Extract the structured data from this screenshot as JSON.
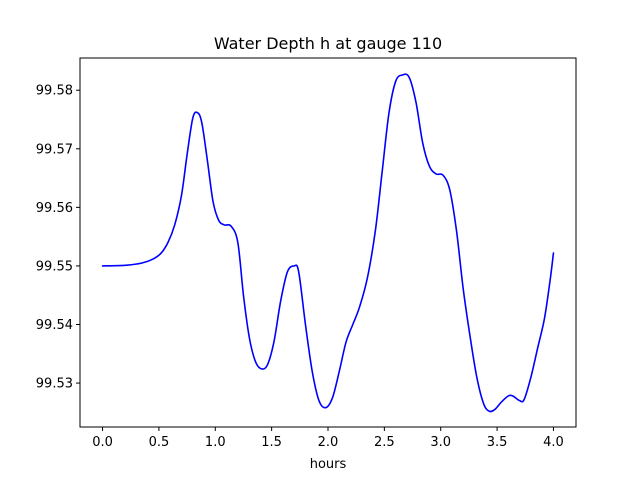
{
  "chart_data": {
    "type": "line",
    "title": "Water Depth h at gauge 110",
    "xlabel": "hours",
    "ylabel": "",
    "xlim": [
      -0.2,
      4.2
    ],
    "ylim": [
      99.5225,
      99.5855
    ],
    "xticks": [
      0.0,
      0.5,
      1.0,
      1.5,
      2.0,
      2.5,
      3.0,
      3.5,
      4.0
    ],
    "xtick_labels": [
      "0.0",
      "0.5",
      "1.0",
      "1.5",
      "2.0",
      "2.5",
      "3.0",
      "3.5",
      "4.0"
    ],
    "yticks": [
      99.53,
      99.54,
      99.55,
      99.56,
      99.57,
      99.58
    ],
    "ytick_labels": [
      "99.53",
      "99.54",
      "99.55",
      "99.56",
      "99.57",
      "99.58"
    ],
    "grid": false,
    "series": [
      {
        "name": "",
        "color": "#0000ff",
        "points": [
          [
            0.0,
            99.55
          ],
          [
            0.2,
            99.5501
          ],
          [
            0.35,
            99.5505
          ],
          [
            0.45,
            99.5512
          ],
          [
            0.52,
            99.5522
          ],
          [
            0.58,
            99.554
          ],
          [
            0.64,
            99.557
          ],
          [
            0.7,
            99.562
          ],
          [
            0.75,
            99.569
          ],
          [
            0.8,
            99.5752
          ],
          [
            0.84,
            99.5762
          ],
          [
            0.88,
            99.5745
          ],
          [
            0.93,
            99.568
          ],
          [
            0.98,
            99.561
          ],
          [
            1.03,
            99.5578
          ],
          [
            1.08,
            99.557
          ],
          [
            1.14,
            99.5568
          ],
          [
            1.2,
            99.554
          ],
          [
            1.25,
            99.545
          ],
          [
            1.3,
            99.538
          ],
          [
            1.35,
            99.534
          ],
          [
            1.4,
            99.5325
          ],
          [
            1.46,
            99.533
          ],
          [
            1.52,
            99.537
          ],
          [
            1.58,
            99.544
          ],
          [
            1.64,
            99.549
          ],
          [
            1.7,
            99.55
          ],
          [
            1.74,
            99.549
          ],
          [
            1.8,
            99.54
          ],
          [
            1.86,
            99.532
          ],
          [
            1.92,
            99.527
          ],
          [
            1.98,
            99.5258
          ],
          [
            2.04,
            99.5275
          ],
          [
            2.1,
            99.532
          ],
          [
            2.16,
            99.537
          ],
          [
            2.22,
            99.54
          ],
          [
            2.28,
            99.543
          ],
          [
            2.35,
            99.548
          ],
          [
            2.42,
            99.556
          ],
          [
            2.48,
            99.566
          ],
          [
            2.54,
            99.576
          ],
          [
            2.6,
            99.5815
          ],
          [
            2.66,
            99.5826
          ],
          [
            2.72,
            99.5822
          ],
          [
            2.78,
            99.578
          ],
          [
            2.84,
            99.571
          ],
          [
            2.9,
            99.567
          ],
          [
            2.96,
            99.5657
          ],
          [
            3.02,
            99.5655
          ],
          [
            3.08,
            99.563
          ],
          [
            3.14,
            99.556
          ],
          [
            3.2,
            99.546
          ],
          [
            3.26,
            99.538
          ],
          [
            3.32,
            99.531
          ],
          [
            3.38,
            99.5265
          ],
          [
            3.43,
            99.5252
          ],
          [
            3.48,
            99.5255
          ],
          [
            3.54,
            99.5268
          ],
          [
            3.6,
            99.5278
          ],
          [
            3.64,
            99.5278
          ],
          [
            3.7,
            99.527
          ],
          [
            3.74,
            99.5272
          ],
          [
            3.8,
            99.531
          ],
          [
            3.86,
            99.536
          ],
          [
            3.92,
            99.541
          ],
          [
            3.97,
            99.5475
          ],
          [
            4.0,
            99.5522
          ]
        ]
      }
    ]
  }
}
